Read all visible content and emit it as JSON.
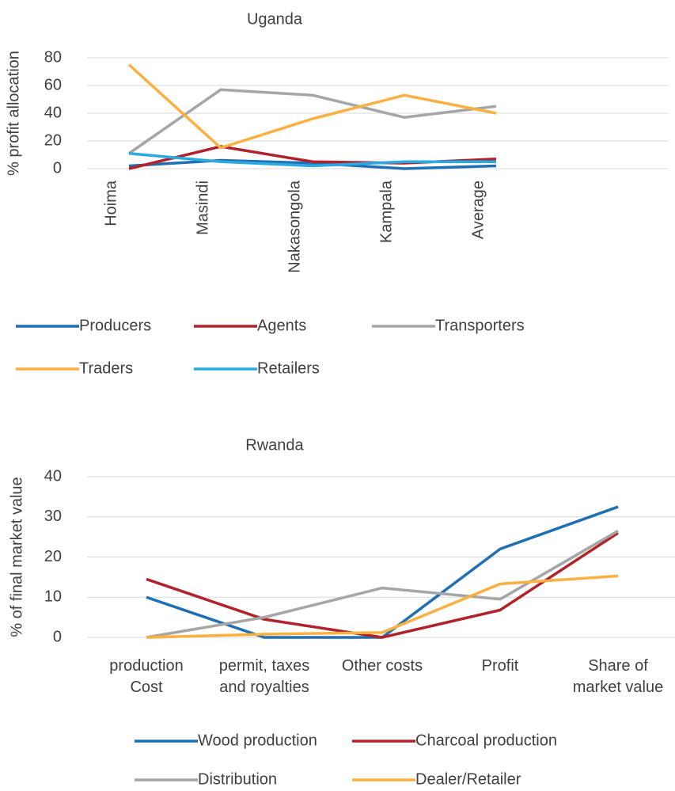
{
  "chart_data": [
    {
      "type": "line",
      "title": "Uganda",
      "y_label": "% profit allocation",
      "categories": [
        "Hoima",
        "Masindi",
        "Nakasongola",
        "Kampala",
        "Average"
      ],
      "ylim": [
        0,
        80
      ],
      "yticks": [
        0,
        20,
        40,
        60,
        80
      ],
      "grid": true,
      "series": [
        {
          "name": "Producers",
          "color": "#1f6fb4",
          "values": [
            2,
            6,
            4,
            0,
            2
          ]
        },
        {
          "name": "Agents",
          "color": "#b0232a",
          "values": [
            0,
            16,
            5,
            4,
            7
          ]
        },
        {
          "name": "Transporters",
          "color": "#a6a6a6",
          "values": [
            11,
            57,
            53,
            37,
            45
          ]
        },
        {
          "name": "Traders",
          "color": "#fbb040",
          "values": [
            75,
            15,
            36,
            53,
            40
          ]
        },
        {
          "name": "Retailers",
          "color": "#29aae1",
          "values": [
            11,
            5,
            2,
            5,
            5
          ]
        }
      ]
    },
    {
      "type": "line",
      "title": "Rwanda",
      "y_label": "% of final market value",
      "categories": [
        "production Cost",
        "permit, taxes and royalties",
        "Other costs",
        "Profit",
        "Share of market value"
      ],
      "ylim": [
        0,
        40
      ],
      "yticks": [
        0,
        10,
        20,
        30,
        40
      ],
      "grid": true,
      "series": [
        {
          "name": "Wood production",
          "color": "#1f6fb4",
          "values": [
            10,
            0,
            0,
            22,
            32.5
          ]
        },
        {
          "name": "Charcoal production",
          "color": "#b0232a",
          "values": [
            14.5,
            4.5,
            0,
            6.8,
            26
          ]
        },
        {
          "name": "Distribution",
          "color": "#a6a6a6",
          "values": [
            0,
            5,
            12.3,
            9.5,
            26.5
          ]
        },
        {
          "name": "Dealer/Retailer",
          "color": "#fbb040",
          "values": [
            0,
            0.8,
            1.2,
            13.3,
            15.3
          ]
        }
      ]
    }
  ]
}
